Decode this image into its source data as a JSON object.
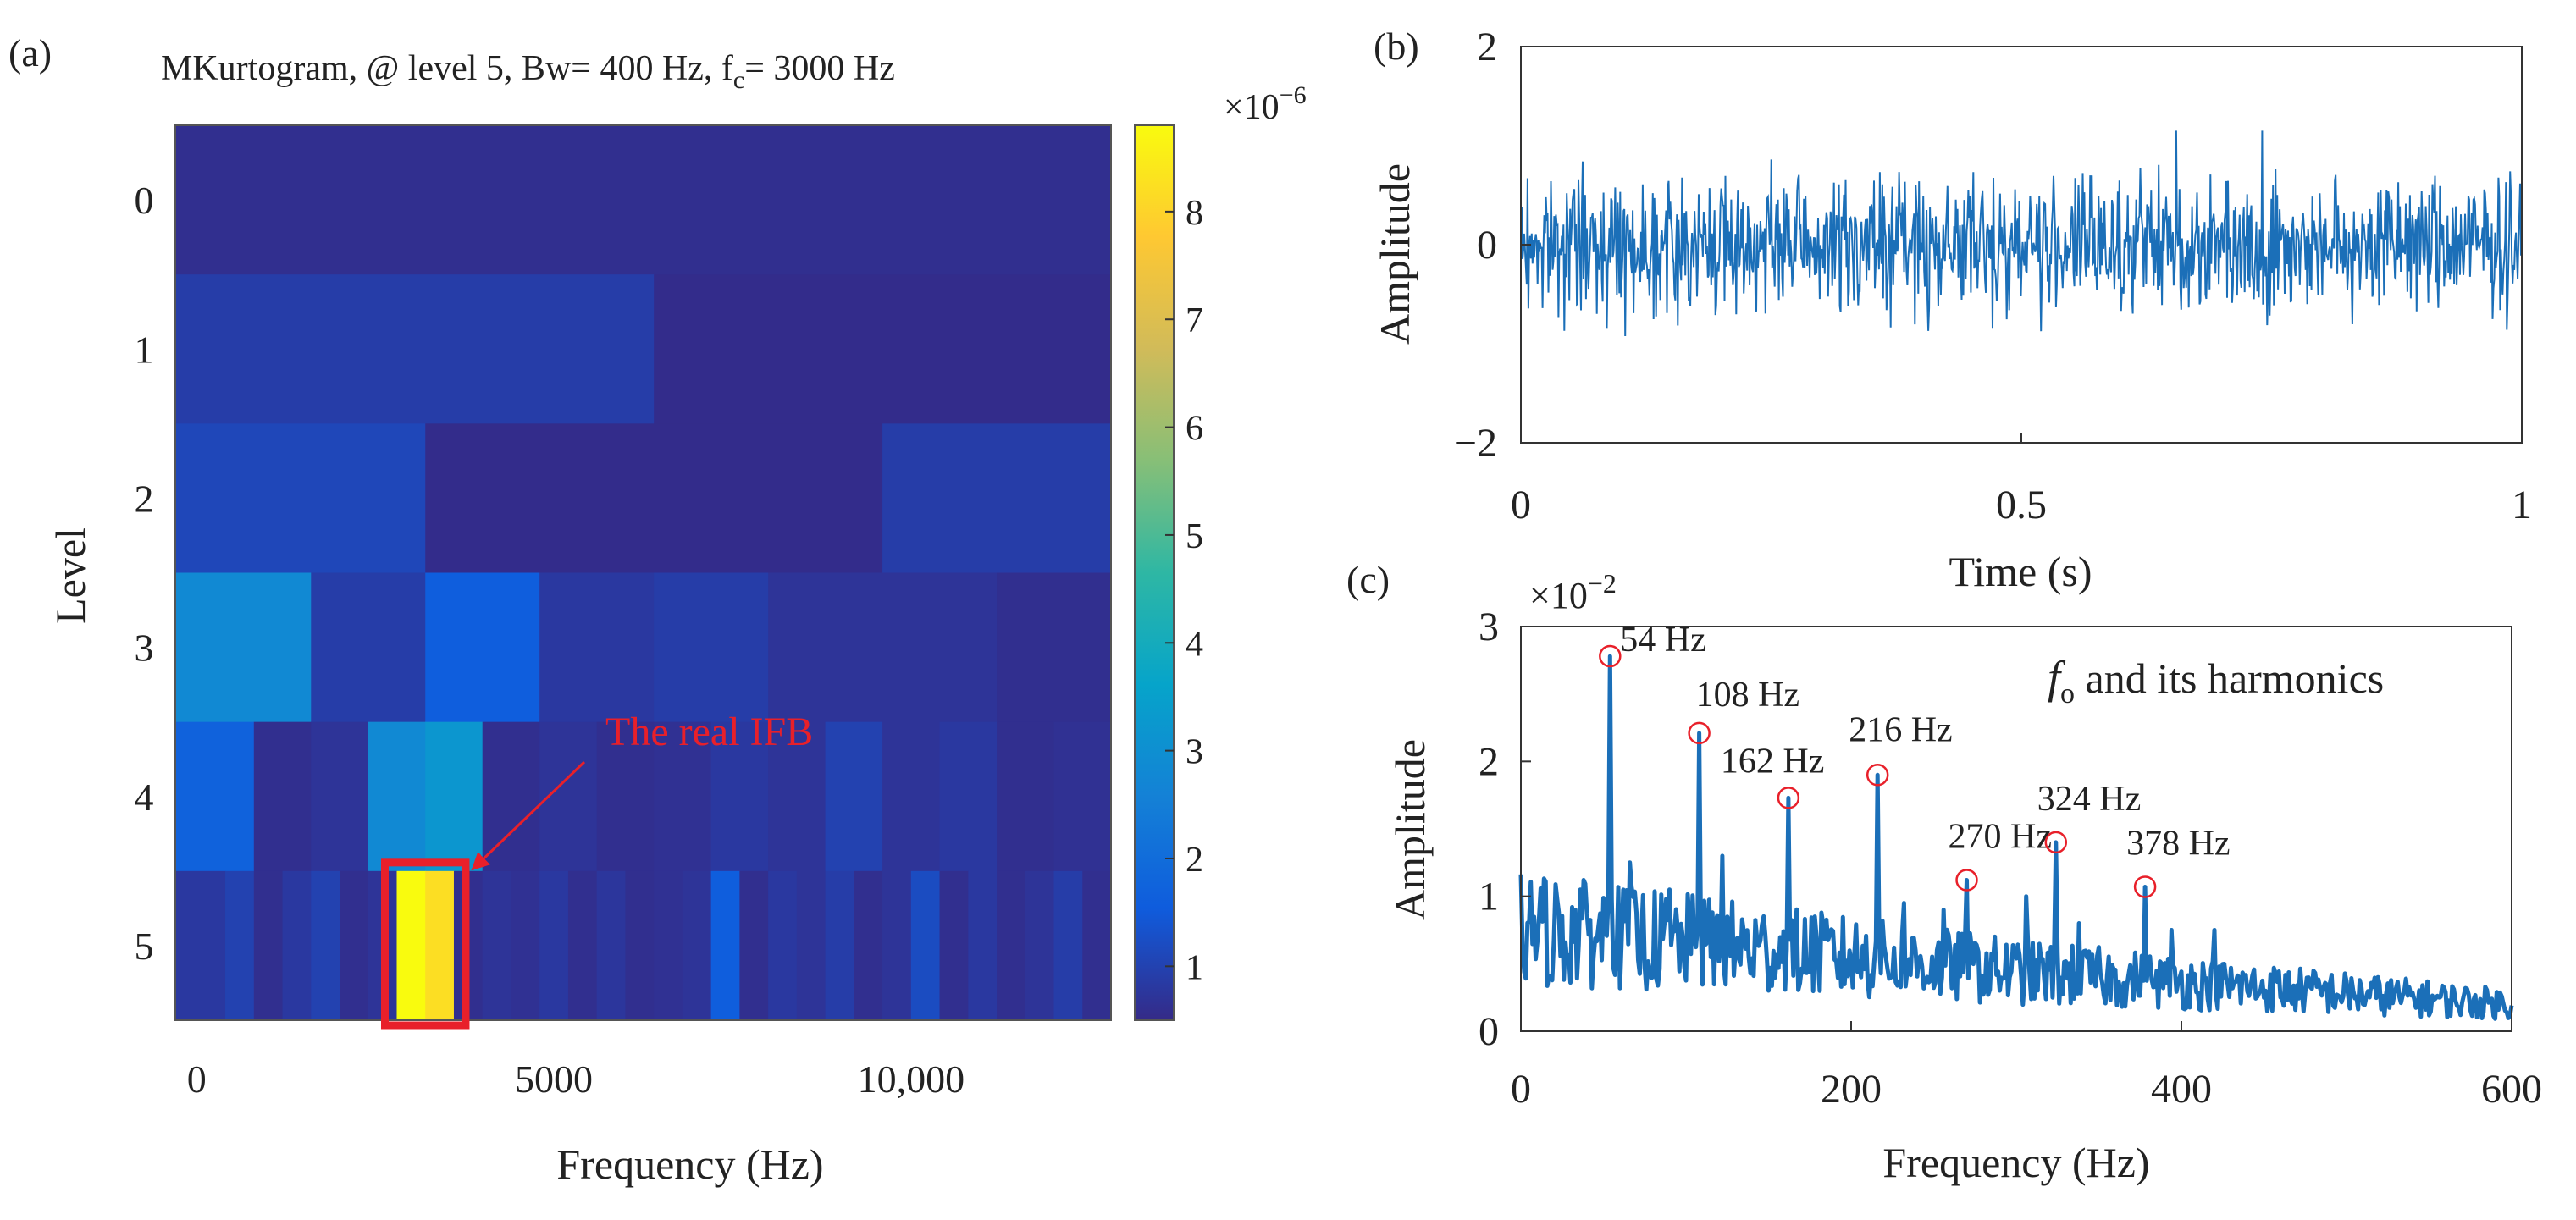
{
  "colors": {
    "parula": [
      "#352a87",
      "#0f5cdd",
      "#1481d6",
      "#06a4ca",
      "#2eb7a4",
      "#87bf77",
      "#d1bb59",
      "#fec832",
      "#f9fb0e"
    ],
    "highlight": "#e8202a",
    "line": "#1b6fb8",
    "axis": "#222222"
  },
  "chart_data": [
    {
      "id": "a",
      "panel_label": "(a)",
      "type": "heatmap",
      "title_main": "MKurtogram, @ level 5, Bw= 400 Hz, f",
      "title_sub": "c",
      "title_tail": "= 3000 Hz",
      "xlabel": "Frequency (Hz)",
      "ylabel": "Level",
      "xlim": [
        -300,
        12800
      ],
      "xticks": [
        0,
        5000,
        10000
      ],
      "xtick_labels": [
        "0",
        "5000",
        "10,000"
      ],
      "levels": [
        0,
        1,
        2,
        3,
        4,
        5
      ],
      "ytick_labels": [
        "0",
        "1",
        "2",
        "3",
        "4",
        "5"
      ],
      "colorbar": {
        "range": [
          0.5,
          8.8
        ],
        "ticks": [
          1,
          2,
          3,
          4,
          5,
          6,
          7,
          8
        ],
        "tick_labels": [
          "1",
          "2",
          "3",
          "4",
          "5",
          "6",
          "7",
          "8"
        ],
        "exponent_base": "×10",
        "exponent_power": "−6"
      },
      "rows": [
        {
          "level": 0,
          "segments": [
            {
              "f0": -300,
              "f1": 12800,
              "v": 0.6
            }
          ]
        },
        {
          "level": 1,
          "segments": [
            {
              "f0": -300,
              "f1": 6400,
              "v": 0.9
            },
            {
              "f0": 6400,
              "f1": 12800,
              "v": 0.55
            }
          ]
        },
        {
          "level": 2,
          "segments": [
            {
              "f0": -300,
              "f1": 3200,
              "v": 1.1
            },
            {
              "f0": 3200,
              "f1": 9600,
              "v": 0.55
            },
            {
              "f0": 9600,
              "f1": 12800,
              "v": 0.9
            }
          ]
        },
        {
          "level": 3,
          "segments": [
            {
              "f0": -300,
              "f1": 1600,
              "v": 2.8
            },
            {
              "f0": 1600,
              "f1": 3200,
              "v": 0.9
            },
            {
              "f0": 3200,
              "f1": 4800,
              "v": 1.6
            },
            {
              "f0": 4800,
              "f1": 6400,
              "v": 0.8
            },
            {
              "f0": 6400,
              "f1": 8000,
              "v": 0.9
            },
            {
              "f0": 8000,
              "f1": 11200,
              "v": 0.7
            },
            {
              "f0": 11200,
              "f1": 12800,
              "v": 0.6
            }
          ]
        },
        {
          "level": 4,
          "segments": [
            {
              "f0": -300,
              "f1": 800,
              "v": 1.7
            },
            {
              "f0": 800,
              "f1": 1600,
              "v": 0.6
            },
            {
              "f0": 1600,
              "f1": 2400,
              "v": 0.7
            },
            {
              "f0": 2400,
              "f1": 3200,
              "v": 2.8
            },
            {
              "f0": 3200,
              "f1": 4000,
              "v": 3.2
            },
            {
              "f0": 4000,
              "f1": 4800,
              "v": 0.6
            },
            {
              "f0": 4800,
              "f1": 5600,
              "v": 0.7
            },
            {
              "f0": 5600,
              "f1": 6400,
              "v": 0.6
            },
            {
              "f0": 6400,
              "f1": 7200,
              "v": 0.65
            },
            {
              "f0": 7200,
              "f1": 8000,
              "v": 0.8
            },
            {
              "f0": 8000,
              "f1": 8800,
              "v": 0.7
            },
            {
              "f0": 8800,
              "f1": 9600,
              "v": 1.0
            },
            {
              "f0": 9600,
              "f1": 10400,
              "v": 0.7
            },
            {
              "f0": 10400,
              "f1": 11200,
              "v": 0.8
            },
            {
              "f0": 11200,
              "f1": 12000,
              "v": 0.6
            },
            {
              "f0": 12000,
              "f1": 12800,
              "v": 0.65
            }
          ]
        },
        {
          "level": 5,
          "segments": [
            {
              "f0": -300,
              "f1": 400,
              "v": 0.8
            },
            {
              "f0": 400,
              "f1": 800,
              "v": 1.0
            },
            {
              "f0": 800,
              "f1": 1200,
              "v": 0.6
            },
            {
              "f0": 1200,
              "f1": 1600,
              "v": 0.8
            },
            {
              "f0": 1600,
              "f1": 2000,
              "v": 1.0
            },
            {
              "f0": 2000,
              "f1": 2400,
              "v": 0.6
            },
            {
              "f0": 2400,
              "f1": 2800,
              "v": 0.7
            },
            {
              "f0": 2800,
              "f1": 3200,
              "v": 8.8
            },
            {
              "f0": 3200,
              "f1": 3600,
              "v": 8.2
            },
            {
              "f0": 3600,
              "f1": 4000,
              "v": 0.6
            },
            {
              "f0": 4000,
              "f1": 4400,
              "v": 0.7
            },
            {
              "f0": 4400,
              "f1": 4800,
              "v": 0.65
            },
            {
              "f0": 4800,
              "f1": 5200,
              "v": 0.8
            },
            {
              "f0": 5200,
              "f1": 5600,
              "v": 0.6
            },
            {
              "f0": 5600,
              "f1": 6000,
              "v": 0.75
            },
            {
              "f0": 6000,
              "f1": 6400,
              "v": 0.6
            },
            {
              "f0": 6400,
              "f1": 6800,
              "v": 0.65
            },
            {
              "f0": 6800,
              "f1": 7200,
              "v": 0.7
            },
            {
              "f0": 7200,
              "f1": 7600,
              "v": 1.6
            },
            {
              "f0": 7600,
              "f1": 8000,
              "v": 0.6
            },
            {
              "f0": 8000,
              "f1": 8400,
              "v": 0.8
            },
            {
              "f0": 8400,
              "f1": 8800,
              "v": 0.7
            },
            {
              "f0": 8800,
              "f1": 9200,
              "v": 0.9
            },
            {
              "f0": 9200,
              "f1": 9600,
              "v": 0.6
            },
            {
              "f0": 9600,
              "f1": 10000,
              "v": 0.7
            },
            {
              "f0": 10000,
              "f1": 10400,
              "v": 1.2
            },
            {
              "f0": 10400,
              "f1": 10800,
              "v": 0.6
            },
            {
              "f0": 10800,
              "f1": 11200,
              "v": 0.8
            },
            {
              "f0": 11200,
              "f1": 11600,
              "v": 0.6
            },
            {
              "f0": 11600,
              "f1": 12000,
              "v": 0.7
            },
            {
              "f0": 12000,
              "f1": 12400,
              "v": 0.9
            },
            {
              "f0": 12400,
              "f1": 12800,
              "v": 0.6
            }
          ]
        }
      ],
      "annotation": {
        "text": "The real IFB",
        "level": 5,
        "f0": 2800,
        "f1": 3600
      }
    },
    {
      "id": "b",
      "panel_label": "(b)",
      "type": "line",
      "xlabel": "Time (s)",
      "ylabel": "Amplitude",
      "xlim": [
        0,
        1
      ],
      "ylim": [
        -2,
        2
      ],
      "xticks": [
        0,
        0.5,
        1
      ],
      "xtick_labels": [
        "0",
        "0.5",
        "1"
      ],
      "yticks": [
        -2,
        0,
        2
      ],
      "ytick_labels": [
        "−2",
        "0",
        "2"
      ],
      "signal": {
        "samples": 1200,
        "noise_std": 0.3,
        "peak_abs": 1.15
      }
    },
    {
      "id": "c",
      "panel_label": "(c)",
      "type": "line",
      "xlabel": "Frequency (Hz)",
      "ylabel": "Amplitude",
      "xlim": [
        0,
        600
      ],
      "ylim": [
        0,
        3
      ],
      "xticks": [
        0,
        200,
        400,
        600
      ],
      "xtick_labels": [
        "0",
        "200",
        "400",
        "600"
      ],
      "yticks": [
        0,
        1,
        2,
        3
      ],
      "ytick_labels": [
        "0",
        "1",
        "2",
        "3"
      ],
      "y_exponent_base": "×10",
      "y_exponent_power": "−2",
      "legend_f": "f",
      "legend_sub": "o",
      "legend_tail": " and its harmonics",
      "peaks": [
        {
          "f": 54,
          "amp": 2.78,
          "label": "54 Hz"
        },
        {
          "f": 108,
          "amp": 2.21,
          "label": "108 Hz"
        },
        {
          "f": 162,
          "amp": 1.73,
          "label": "162 Hz"
        },
        {
          "f": 216,
          "amp": 1.9,
          "label": "216 Hz"
        },
        {
          "f": 270,
          "amp": 1.12,
          "label": "270 Hz"
        },
        {
          "f": 324,
          "amp": 1.4,
          "label": "324 Hz"
        },
        {
          "f": 378,
          "amp": 1.07,
          "label": "378 Hz"
        }
      ],
      "side_peaks": [
        {
          "f": 36,
          "amp": 1.05
        },
        {
          "f": 66,
          "amp": 1.25
        },
        {
          "f": 90,
          "amp": 1.05
        },
        {
          "f": 122,
          "amp": 1.3
        },
        {
          "f": 178,
          "amp": 0.85
        },
        {
          "f": 232,
          "amp": 0.95
        },
        {
          "f": 256,
          "amp": 0.9
        },
        {
          "f": 306,
          "amp": 1.0
        },
        {
          "f": 338,
          "amp": 0.8
        },
        {
          "f": 394,
          "amp": 0.75
        },
        {
          "f": 420,
          "amp": 0.75
        }
      ],
      "baseline": {
        "start": 0.95,
        "mid": 0.55,
        "end": 0.25
      }
    }
  ]
}
